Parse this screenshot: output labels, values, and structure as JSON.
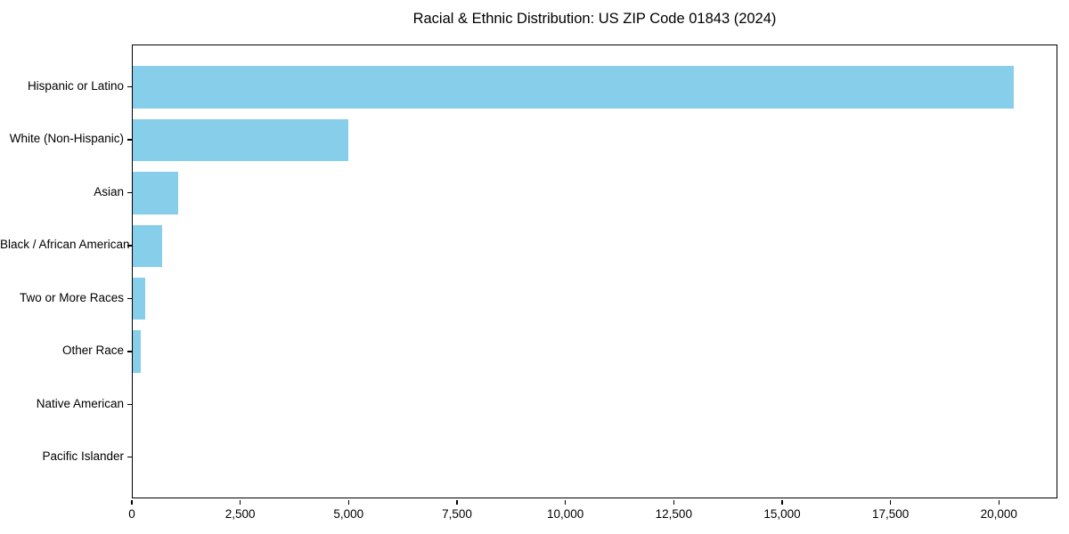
{
  "title": "Racial & Ethnic Distribution: US ZIP Code 01843 (2024)",
  "colors": {
    "bar": "#87CEEB",
    "axis": "#000000",
    "text": "#000000",
    "background": "#FFFFFF"
  },
  "chart_data": {
    "type": "bar",
    "orientation": "horizontal",
    "title": "Racial & Ethnic Distribution: US ZIP Code 01843 (2024)",
    "categories": [
      "Hispanic or Latino",
      "White (Non-Hispanic)",
      "Asian",
      "Black / African American",
      "Two or More Races",
      "Other Race",
      "Native American",
      "Pacific Islander"
    ],
    "values": [
      20330,
      4970,
      1050,
      670,
      280,
      180,
      0,
      0
    ],
    "xlabel": "",
    "ylabel": "",
    "xlim": [
      0,
      21350
    ],
    "x_ticks": [
      0,
      2500,
      5000,
      7500,
      10000,
      12500,
      15000,
      17500,
      20000
    ],
    "x_tick_labels": [
      "0",
      "2,500",
      "5,000",
      "7,500",
      "10,000",
      "12,500",
      "15,000",
      "17,500",
      "20,000"
    ],
    "grid": false,
    "legend": false,
    "bar_color": "#87CEEB"
  }
}
